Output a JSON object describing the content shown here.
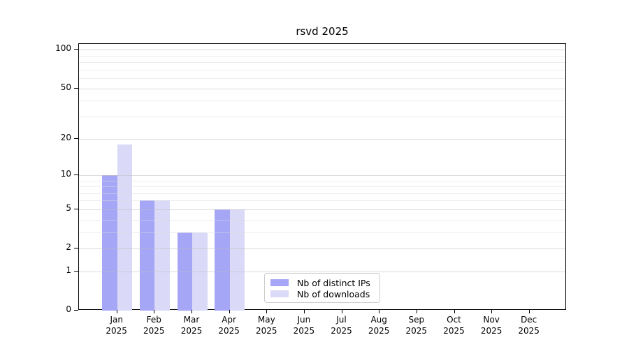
{
  "title": "rsvd 2025",
  "chart_data": {
    "type": "bar",
    "title": "rsvd 2025",
    "categories": [
      {
        "month": "Jan",
        "year": "2025"
      },
      {
        "month": "Feb",
        "year": "2025"
      },
      {
        "month": "Mar",
        "year": "2025"
      },
      {
        "month": "Apr",
        "year": "2025"
      },
      {
        "month": "May",
        "year": "2025"
      },
      {
        "month": "Jun",
        "year": "2025"
      },
      {
        "month": "Jul",
        "year": "2025"
      },
      {
        "month": "Aug",
        "year": "2025"
      },
      {
        "month": "Sep",
        "year": "2025"
      },
      {
        "month": "Oct",
        "year": "2025"
      },
      {
        "month": "Nov",
        "year": "2025"
      },
      {
        "month": "Dec",
        "year": "2025"
      }
    ],
    "series": [
      {
        "name": "Nb of distinct IPs",
        "color": "#a6a6f6",
        "values": [
          10,
          6,
          3,
          5,
          0,
          0,
          0,
          0,
          0,
          0,
          0,
          0
        ]
      },
      {
        "name": "Nb of downloads",
        "color": "#dadaf8",
        "values": [
          18,
          6,
          3,
          5,
          0,
          0,
          0,
          0,
          0,
          0,
          0,
          0
        ]
      }
    ],
    "yscale": "log1p",
    "yticks": [
      0,
      1,
      2,
      5,
      10,
      20,
      50,
      100
    ],
    "minor_yticks": [
      3,
      4,
      6,
      7,
      8,
      9,
      30,
      40,
      60,
      70,
      80,
      90
    ],
    "ylim": [
      0,
      111
    ],
    "grid": true,
    "legend_position": "lower center",
    "colors": {
      "grid_major": "rgba(190,190,190,0.55)",
      "grid_minor": "rgba(220,220,220,0.50)",
      "axis": "#000000",
      "background": "#ffffff"
    }
  }
}
